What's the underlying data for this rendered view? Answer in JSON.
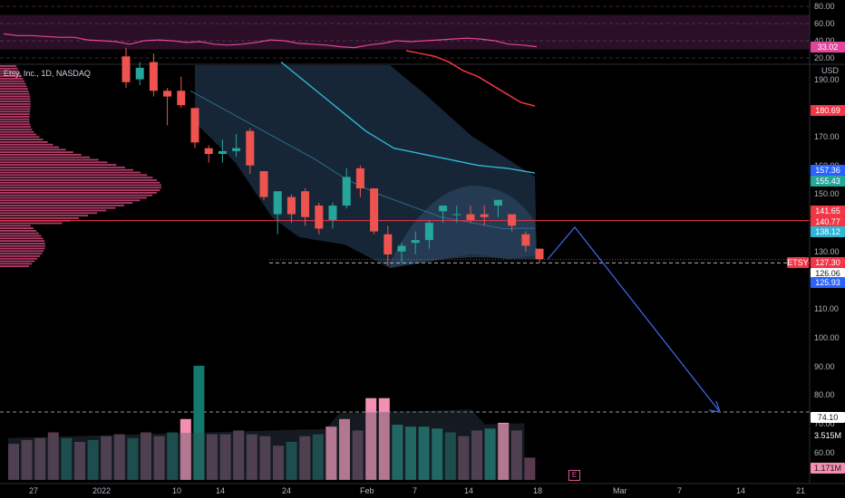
{
  "symbol": {
    "title": "Etsy, Inc., 1D, NASDAQ"
  },
  "currency": "USD",
  "colors": {
    "up": "#26a69a",
    "down": "#ef5350",
    "rsi": "#e0469a",
    "ma_fast": "#2fb6d6",
    "ma_slow": "#f23645",
    "forecast": "#3f63e0",
    "profile": "#f0508c",
    "band": "#1c2f44"
  },
  "rsi": {
    "ticks": [
      "80.00",
      "60.00",
      "40.00",
      "20.00"
    ],
    "value_label": "33.02"
  },
  "price_axis": {
    "ticks": [
      "190.00",
      "170.00",
      "160.00",
      "150.00",
      "130.00",
      "110.00",
      "100.00",
      "90.00",
      "80.00",
      "70.00",
      "60.00"
    ]
  },
  "price_labels": [
    {
      "text": "180.69",
      "bg": "#f23645",
      "fg": "#ffffff"
    },
    {
      "text": "157.36",
      "bg": "#2962ff",
      "fg": "#ffffff"
    },
    {
      "text": "155.43",
      "bg": "#26a69a",
      "fg": "#ffffff"
    },
    {
      "text": "141.65",
      "bg": "#f23645",
      "fg": "#ffffff"
    },
    {
      "text": "140.77",
      "bg": "#f23645",
      "fg": "#ffffff"
    },
    {
      "text": "138.12",
      "bg": "#2fb6d6",
      "fg": "#ffffff"
    },
    {
      "text": "127.30",
      "bg": "#f23645",
      "fg": "#ffffff"
    },
    {
      "text": "126.06",
      "bg": "#ffffff",
      "fg": "#131722"
    },
    {
      "text": "125.93",
      "bg": "#2962ff",
      "fg": "#ffffff"
    },
    {
      "text": "74.10",
      "bg": "#ffffff",
      "fg": "#131722"
    },
    {
      "text": "3.515M",
      "bg": "#000000",
      "fg": "#ffffff"
    },
    {
      "text": "1.171M",
      "bg": "#f48fb1",
      "fg": "#131722"
    }
  ],
  "etsy_tag": "ETSY",
  "time_axis": {
    "ticks": [
      "27",
      "2022",
      "10",
      "14",
      "24",
      "Feb",
      "7",
      "14",
      "18",
      "Mar",
      "7",
      "14",
      "21"
    ]
  },
  "earnings_marker": "E",
  "chart_data": {
    "type": "candlestick",
    "title": "Etsy, Inc., 1D, NASDAQ",
    "series": [
      {
        "name": "Etsy, Inc.",
        "ohlc": [
          {
            "o": 198,
            "h": 201,
            "l": 187,
            "c": 189
          },
          {
            "o": 190,
            "h": 196,
            "l": 188,
            "c": 194
          },
          {
            "o": 196,
            "h": 199,
            "l": 184,
            "c": 186
          },
          {
            "o": 186,
            "h": 187,
            "l": 174,
            "c": 184
          },
          {
            "o": 186,
            "h": 191,
            "l": 180,
            "c": 181
          },
          {
            "o": 180,
            "h": 180,
            "l": 166,
            "c": 168
          },
          {
            "o": 166,
            "h": 167,
            "l": 161,
            "c": 164
          },
          {
            "o": 164,
            "h": 169,
            "l": 161,
            "c": 165
          },
          {
            "o": 165,
            "h": 171,
            "l": 163,
            "c": 166
          },
          {
            "o": 172,
            "h": 173,
            "l": 157,
            "c": 160
          },
          {
            "o": 158,
            "h": 158,
            "l": 148,
            "c": 149
          },
          {
            "o": 143,
            "h": 151,
            "l": 136,
            "c": 151
          },
          {
            "o": 149,
            "h": 150,
            "l": 140,
            "c": 143
          },
          {
            "o": 151,
            "h": 152,
            "l": 139,
            "c": 142
          },
          {
            "o": 146,
            "h": 147,
            "l": 136,
            "c": 138
          },
          {
            "o": 141,
            "h": 147,
            "l": 138,
            "c": 146
          },
          {
            "o": 146,
            "h": 159,
            "l": 145,
            "c": 156
          },
          {
            "o": 159,
            "h": 160,
            "l": 149,
            "c": 152
          },
          {
            "o": 152,
            "h": 152,
            "l": 136,
            "c": 137
          },
          {
            "o": 136,
            "h": 139,
            "l": 125,
            "c": 129
          },
          {
            "o": 130,
            "h": 133,
            "l": 126,
            "c": 132
          },
          {
            "o": 133,
            "h": 137,
            "l": 129,
            "c": 134
          },
          {
            "o": 134,
            "h": 141,
            "l": 131,
            "c": 140
          },
          {
            "o": 144,
            "h": 146,
            "l": 140,
            "c": 146
          },
          {
            "o": 143,
            "h": 146,
            "l": 140,
            "c": 143
          },
          {
            "o": 143,
            "h": 146,
            "l": 140,
            "c": 141
          },
          {
            "o": 143,
            "h": 146,
            "l": 139,
            "c": 142
          },
          {
            "o": 146,
            "h": 148,
            "l": 142,
            "c": 148
          },
          {
            "o": 143,
            "h": 143,
            "l": 137,
            "c": 139
          },
          {
            "o": 136,
            "h": 137,
            "l": 130,
            "c": 132
          },
          {
            "o": 131,
            "h": 131,
            "l": 126,
            "c": 127.3
          }
        ]
      }
    ],
    "volume": [
      1.9,
      2.1,
      2.2,
      2.5,
      2.2,
      2.0,
      2.1,
      2.3,
      2.4,
      2.2,
      2.5,
      2.3,
      2.5,
      3.2,
      6.0,
      2.4,
      2.4,
      2.6,
      2.4,
      2.3,
      1.8,
      2.0,
      2.3,
      2.4,
      2.8,
      3.2,
      2.6,
      4.3,
      4.3,
      2.9,
      2.8,
      2.8,
      2.7,
      2.5,
      2.3,
      2.6,
      2.7,
      3.0,
      2.6,
      1.171
    ],
    "volume_up": [
      false,
      false,
      false,
      false,
      true,
      false,
      true,
      false,
      false,
      true,
      false,
      false,
      true,
      false,
      true,
      false,
      false,
      false,
      false,
      false,
      false,
      true,
      false,
      true,
      false,
      false,
      false,
      false,
      false,
      true,
      true,
      true,
      true,
      true,
      false,
      false,
      true,
      false,
      false,
      false
    ],
    "rsi_values": [
      48,
      46,
      46,
      45,
      44,
      44,
      41,
      40,
      39,
      36,
      40,
      41,
      40,
      38,
      39,
      36,
      35,
      36,
      38,
      41,
      40,
      37,
      36,
      35,
      33,
      32,
      35,
      37,
      40,
      39,
      40,
      41,
      42,
      43,
      42,
      40,
      36,
      35,
      33.02
    ],
    "ylim": [
      55,
      200
    ],
    "rsi_ylim": [
      15,
      85
    ],
    "volume_max": 6.0,
    "ma_slow": [
      200,
      199,
      198,
      196,
      193,
      191,
      188,
      185,
      182,
      180.69
    ],
    "ma_fast": [
      196,
      192,
      188,
      184,
      180,
      176,
      172,
      169,
      166,
      165,
      164,
      163,
      162,
      161,
      160,
      159.5,
      159,
      158.2,
      157.36
    ],
    "lower_line": [
      186,
      180,
      174,
      168,
      162,
      155,
      150,
      146,
      142,
      140,
      138,
      138.12
    ],
    "support_price": 126.06,
    "resistance_price": 140.77,
    "target_price": 74.1,
    "forecast_path": [
      127.3,
      138.5,
      74.1
    ]
  }
}
